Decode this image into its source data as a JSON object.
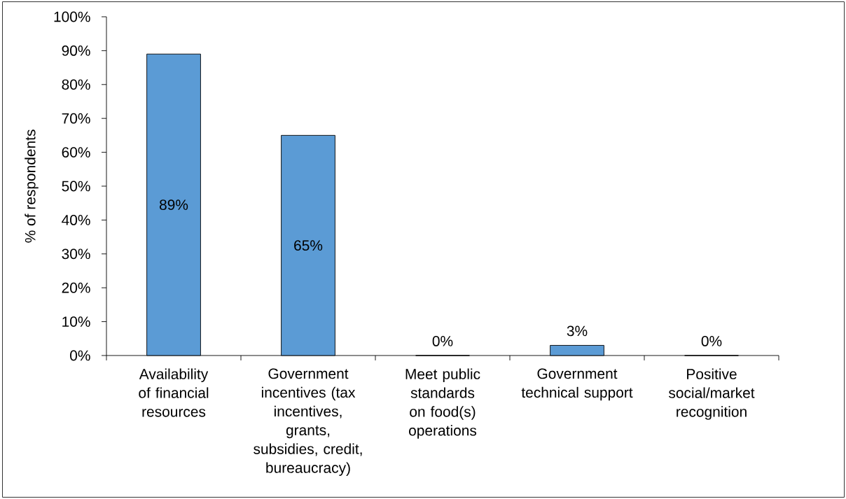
{
  "chart_data": {
    "type": "bar",
    "ylabel": "% of respondents",
    "categories": [
      "Availability of financial resources",
      "Government incentives (tax incentives, grants, subsidies, credit, bureaucracy)",
      "Meet public standards on food(s) operations",
      "Government technical support",
      "Positive social/market recognition"
    ],
    "values": [
      89,
      65,
      0,
      3,
      0
    ],
    "value_labels": [
      "89%",
      "65%",
      "0%",
      "3%",
      "0%"
    ],
    "color": "#5b9bd5",
    "ylim": [
      0,
      100
    ],
    "yticks": [
      {
        "value": 0,
        "label": "0%"
      },
      {
        "value": 10,
        "label": "10%"
      },
      {
        "value": 20,
        "label": "20%"
      },
      {
        "value": 30,
        "label": "30%"
      },
      {
        "value": 40,
        "label": "40%"
      },
      {
        "value": 50,
        "label": "50%"
      },
      {
        "value": 60,
        "label": "60%"
      },
      {
        "value": 70,
        "label": "70%"
      },
      {
        "value": 80,
        "label": "80%"
      },
      {
        "value": 90,
        "label": "90%"
      },
      {
        "value": 100,
        "label": "100%"
      }
    ]
  }
}
